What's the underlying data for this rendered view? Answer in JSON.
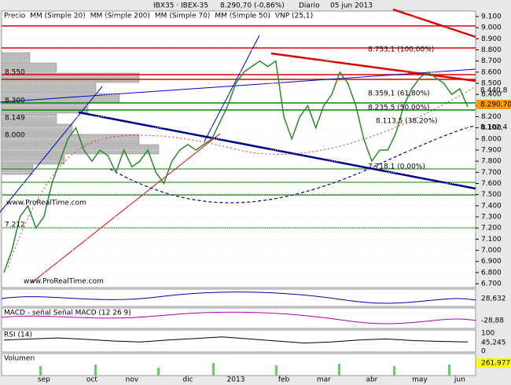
{
  "chart_data": {
    "type": "line",
    "symbol": "IBX35 · IBEX-35",
    "last": "8.290,70 (-0,86%)",
    "period": "Diario",
    "date": "05 jun 2013",
    "legend_texts": [
      "Precio",
      "MM (Simple 20)",
      "MM (Simple 200)",
      "MM (Simple 70)",
      "MM (Simple 50)",
      "VNP (25,1)"
    ],
    "categories": [
      null,
      null,
      null,
      null,
      null,
      "sep",
      null,
      null,
      null,
      null,
      null,
      "oct",
      null,
      null,
      null,
      null,
      "nov",
      null,
      null,
      null,
      null,
      null,
      null,
      "dic",
      null,
      null,
      null,
      null,
      null,
      "2013",
      null,
      null,
      null,
      null,
      null,
      "feb",
      null,
      null,
      null,
      null,
      "mar",
      null,
      null,
      null,
      null,
      null,
      "abr",
      null,
      null,
      null,
      null,
      null,
      "may",
      null,
      null,
      null,
      null,
      "jun",
      null
    ],
    "series": [
      {
        "name": "Precio",
        "color": "#2a8a2a",
        "values": [
          6800,
          7000,
          7300,
          7400,
          7200,
          7300,
          7600,
          7800,
          8000,
          8100,
          7900,
          7800,
          7900,
          7850,
          7700,
          7900,
          7750,
          7800,
          7900,
          7700,
          7600,
          7800,
          7900,
          7950,
          7900,
          7950,
          8000,
          8150,
          8300,
          8500,
          8600,
          8650,
          8700,
          8650,
          8700,
          8200,
          8000,
          8200,
          8300,
          8100,
          8300,
          8400,
          8600,
          8500,
          8300,
          8000,
          7800,
          7900,
          7900,
          8050,
          8300,
          8450,
          8550,
          8600,
          8550,
          8500,
          8400,
          8450,
          8290
        ]
      }
    ],
    "ylim": [
      6665,
      9135
    ],
    "yticks": [
      {
        "value": 9100,
        "label": "9.100"
      },
      {
        "value": 9000,
        "label": "9.000"
      },
      {
        "value": 8900,
        "label": "8.900"
      },
      {
        "value": 8800,
        "label": "8.800"
      },
      {
        "value": 8700,
        "label": "8.700"
      },
      {
        "value": 8600,
        "label": "8.600"
      },
      {
        "value": 8500,
        "label": "8.500"
      },
      {
        "value": 8400,
        "label": "8.400"
      },
      {
        "value": 8300,
        "label": "8.300"
      },
      {
        "value": 8200,
        "label": "8.200"
      },
      {
        "value": 8100,
        "label": "8.100"
      },
      {
        "value": 8000,
        "label": "8.000"
      },
      {
        "value": 7900,
        "label": "7.900"
      },
      {
        "value": 7800,
        "label": "7.800"
      },
      {
        "value": 7700,
        "label": "7.700"
      },
      {
        "value": 7600,
        "label": "7.600"
      },
      {
        "value": 7500,
        "label": "7.500"
      },
      {
        "value": 7400,
        "label": "7.400"
      },
      {
        "value": 7300,
        "label": "7.300"
      },
      {
        "value": 7200,
        "label": "7.200"
      },
      {
        "value": 7100,
        "label": "7.100"
      },
      {
        "value": 7000,
        "label": "7.000"
      },
      {
        "value": 6900,
        "label": "6.900"
      },
      {
        "value": 6800,
        "label": "6.800"
      },
      {
        "value": 6700,
        "label": "6.700"
      }
    ],
    "price_labels": [
      "8.440,8",
      "8.290,70",
      "8.102,4"
    ],
    "annotations": [
      "8.753,1 (100,00%)",
      "8.359,1 (61,80%)",
      "8.235,5 (50,00%)",
      "8.113,5 (38,20%)",
      "7.718,1 (0,00%)",
      "8.550",
      "8.300",
      "8.149",
      "8.000",
      "7.212",
      "www.ProRealTime.com",
      "www.ProRealTime.com"
    ],
    "panels": {
      "p1_value": "28,632",
      "macd_label": "MACD - señal Señal MACD (12 26 9)",
      "macd_value": "-28,88",
      "rsi_label": "RSI (14)",
      "rsi_top": "100",
      "rsi_value": "45,245",
      "rsi_bottom": "0",
      "rsi_values": [
        55,
        60,
        65,
        58,
        50,
        45,
        55,
        62,
        70,
        60,
        50,
        40,
        45,
        55,
        60,
        52,
        48,
        45
      ],
      "rsi_ylim": [
        0,
        100
      ],
      "vol_label": "Volumen",
      "vol_value": "261.977"
    }
  }
}
